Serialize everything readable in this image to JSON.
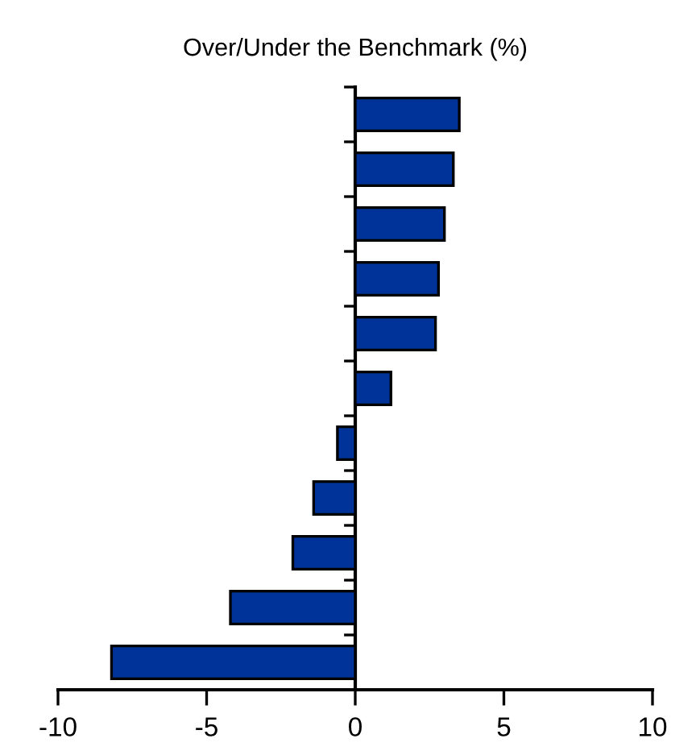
{
  "chart_data": {
    "type": "bar",
    "orientation": "horizontal",
    "title": "Over/Under the Benchmark (%)",
    "categories": [
      null,
      null,
      null,
      null,
      null,
      null,
      null,
      null,
      null,
      null,
      null
    ],
    "values": [
      3.5,
      3.3,
      3.0,
      2.8,
      2.7,
      1.2,
      -0.6,
      -1.4,
      -2.1,
      -4.2,
      -8.2
    ],
    "color": "#003399",
    "xlim": [
      -10,
      10
    ],
    "xticks": [
      -10,
      -5,
      0,
      5,
      10
    ]
  }
}
